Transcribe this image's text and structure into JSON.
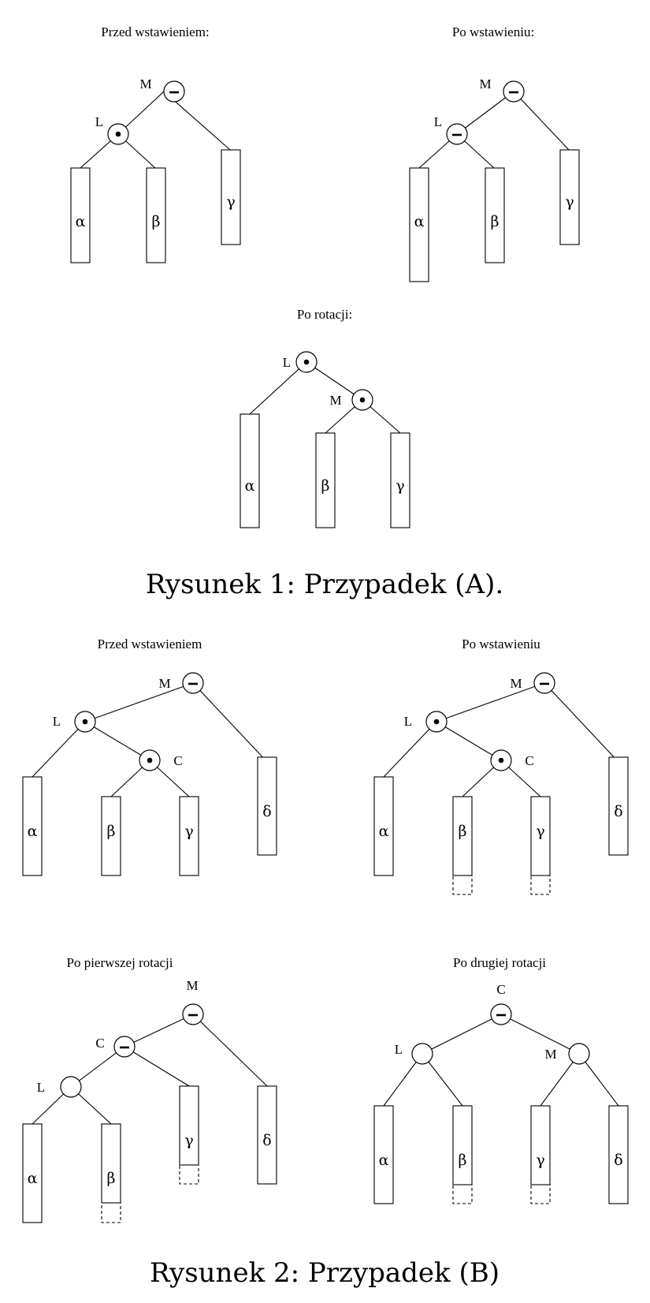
{
  "figure1": {
    "caption": "Rysunek 1: Przypadek (A).",
    "panel_before": {
      "title": "Przed wstawieniem:",
      "node_M": "M",
      "node_L": "L",
      "alpha": "α",
      "beta": "β",
      "gamma": "γ"
    },
    "panel_after": {
      "title": "Po wstawieniu:",
      "node_M": "M",
      "node_L": "L",
      "alpha": "α",
      "beta": "β",
      "gamma": "γ"
    },
    "panel_rotation": {
      "title": "Po rotacji:",
      "node_L": "L",
      "node_M": "M",
      "alpha": "α",
      "beta": "β",
      "gamma": "γ"
    }
  },
  "figure2": {
    "caption": "Rysunek 2: Przypadek (B)",
    "panel_before": {
      "title": "Przed wstawieniem",
      "node_M": "M",
      "node_L": "L",
      "node_C": "C",
      "alpha": "α",
      "beta": "β",
      "gamma": "γ",
      "delta": "δ"
    },
    "panel_after": {
      "title": "Po wstawieniu",
      "node_M": "M",
      "node_L": "L",
      "node_C": "C",
      "alpha": "α",
      "beta": "β",
      "gamma": "γ",
      "delta": "δ"
    },
    "panel_first_rotation": {
      "title": "Po pierwszej rotacji",
      "node_M": "M",
      "node_C": "C",
      "node_L": "L",
      "alpha": "α",
      "beta": "β",
      "gamma": "γ",
      "delta": "δ"
    },
    "panel_second_rotation": {
      "title": "Po drugiej rotacji",
      "node_C": "C",
      "node_L": "L",
      "node_M": "M",
      "alpha": "α",
      "beta": "β",
      "gamma": "γ",
      "delta": "δ"
    }
  }
}
